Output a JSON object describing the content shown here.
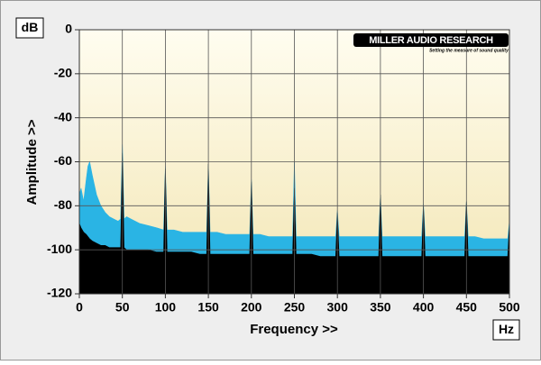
{
  "chart_data": {
    "type": "area",
    "x_label": "Frequency >>",
    "y_label": "Amplitude >>",
    "x_unit": "Hz",
    "y_unit": "dB",
    "logo": {
      "title": "MILLER AUDIO RESEARCH",
      "tagline": "Setting the measure of sound quality"
    },
    "xlim": [
      0,
      500
    ],
    "ylim": [
      -120,
      0
    ],
    "xticks": [
      0,
      50,
      100,
      150,
      200,
      250,
      300,
      350,
      400,
      450,
      500
    ],
    "yticks": [
      0,
      -20,
      -40,
      -60,
      -80,
      -100,
      -120
    ],
    "grid": true,
    "x": [
      0,
      2,
      5,
      8,
      10,
      12,
      15,
      20,
      25,
      30,
      35,
      40,
      45,
      48,
      50,
      52,
      55,
      60,
      70,
      80,
      90,
      98,
      100,
      102,
      110,
      120,
      130,
      140,
      148,
      150,
      152,
      160,
      170,
      180,
      190,
      198,
      200,
      202,
      210,
      220,
      230,
      240,
      248,
      250,
      252,
      260,
      270,
      280,
      290,
      298,
      300,
      302,
      310,
      320,
      330,
      340,
      348,
      350,
      352,
      360,
      370,
      380,
      390,
      398,
      400,
      402,
      410,
      420,
      430,
      440,
      448,
      450,
      452,
      460,
      470,
      480,
      490,
      498,
      500
    ],
    "series": [
      {
        "color": "#2ab4e4",
        "values": [
          -75,
          -72,
          -78,
          -68,
          -62,
          -60,
          -66,
          -75,
          -80,
          -83,
          -85,
          -86,
          -87,
          -86,
          -52,
          -86,
          -85,
          -86,
          -88,
          -89,
          -90,
          -91,
          -62,
          -91,
          -91,
          -92,
          -92,
          -92,
          -92,
          -61,
          -92,
          -92,
          -93,
          -93,
          -93,
          -93,
          -68,
          -93,
          -93,
          -94,
          -94,
          -94,
          -94,
          -60,
          -94,
          -94,
          -94,
          -94,
          -94,
          -94,
          -82,
          -94,
          -94,
          -94,
          -94,
          -94,
          -94,
          -75,
          -94,
          -94,
          -94,
          -94,
          -94,
          -94,
          -79,
          -94,
          -94,
          -94,
          -94,
          -94,
          -94,
          -78,
          -94,
          -94,
          -95,
          -95,
          -95,
          -95,
          -87
        ]
      },
      {
        "color": "#000000",
        "values": [
          -88,
          -90,
          -92,
          -93,
          -94,
          -95,
          -96,
          -97,
          -98,
          -98,
          -99,
          -99,
          -99,
          -99,
          -56,
          -99,
          -100,
          -100,
          -100,
          -100,
          -101,
          -101,
          -63,
          -101,
          -101,
          -101,
          -101,
          -102,
          -102,
          -61,
          -102,
          -102,
          -102,
          -102,
          -102,
          -102,
          -69,
          -102,
          -102,
          -102,
          -102,
          -102,
          -102,
          -72,
          -102,
          -102,
          -102,
          -103,
          -103,
          -103,
          -83,
          -103,
          -103,
          -103,
          -103,
          -103,
          -103,
          -75,
          -103,
          -103,
          -103,
          -103,
          -103,
          -103,
          -80,
          -103,
          -103,
          -103,
          -103,
          -103,
          -103,
          -78,
          -103,
          -103,
          -103,
          -103,
          -103,
          -103,
          -88
        ]
      }
    ]
  }
}
